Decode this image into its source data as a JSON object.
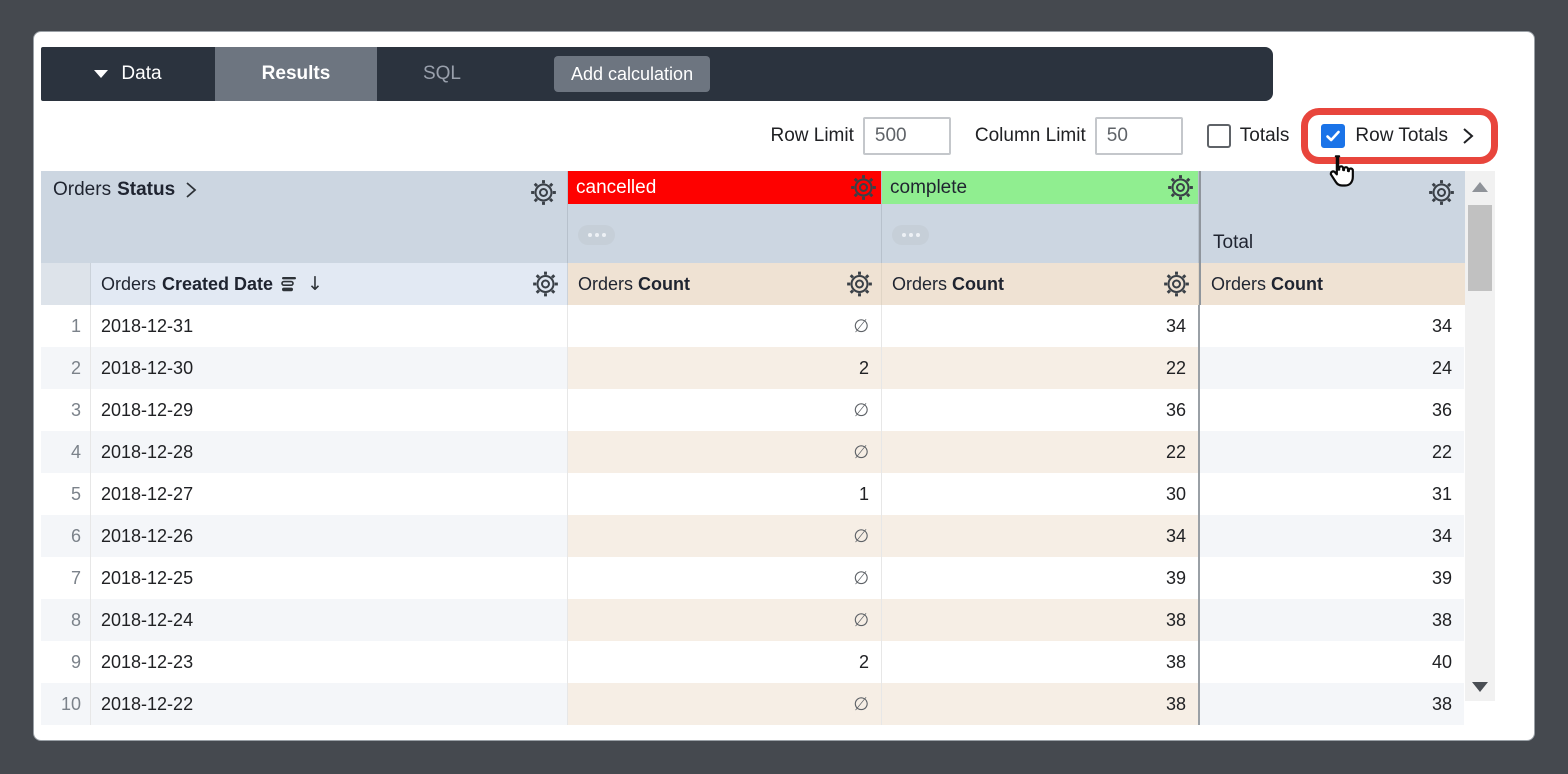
{
  "topbar": {
    "data_tab": "Data",
    "results_tab": "Results",
    "sql_tab": "SQL",
    "add_calculation": "Add calculation"
  },
  "controls": {
    "row_limit_label": "Row Limit",
    "row_limit_value": "500",
    "column_limit_label": "Column Limit",
    "column_limit_value": "50",
    "totals_label": "Totals",
    "totals_checked": false,
    "row_totals_label": "Row Totals",
    "row_totals_checked": true
  },
  "table": {
    "dimension": {
      "prefix": "Orders",
      "name": "Status"
    },
    "pivot_values": [
      {
        "label": "cancelled",
        "bg": "#FE0100",
        "fg": "#FFFFFF"
      },
      {
        "label": "complete",
        "bg": "#90EE90",
        "fg": "#1F2430"
      }
    ],
    "total_column_label": "Total",
    "row_field": {
      "prefix": "Orders",
      "name": "Created Date"
    },
    "measure": {
      "prefix": "Orders",
      "name": "Count"
    },
    "null_symbol": "∅",
    "rows": [
      {
        "num": "1",
        "date": "2018-12-31",
        "cancelled": "∅",
        "complete": "34",
        "total": "34"
      },
      {
        "num": "2",
        "date": "2018-12-30",
        "cancelled": "2",
        "complete": "22",
        "total": "24"
      },
      {
        "num": "3",
        "date": "2018-12-29",
        "cancelled": "∅",
        "complete": "36",
        "total": "36"
      },
      {
        "num": "4",
        "date": "2018-12-28",
        "cancelled": "∅",
        "complete": "22",
        "total": "22"
      },
      {
        "num": "5",
        "date": "2018-12-27",
        "cancelled": "1",
        "complete": "30",
        "total": "31"
      },
      {
        "num": "6",
        "date": "2018-12-26",
        "cancelled": "∅",
        "complete": "34",
        "total": "34"
      },
      {
        "num": "7",
        "date": "2018-12-25",
        "cancelled": "∅",
        "complete": "39",
        "total": "39"
      },
      {
        "num": "8",
        "date": "2018-12-24",
        "cancelled": "∅",
        "complete": "38",
        "total": "38"
      },
      {
        "num": "9",
        "date": "2018-12-23",
        "cancelled": "2",
        "complete": "38",
        "total": "40"
      },
      {
        "num": "10",
        "date": "2018-12-22",
        "cancelled": "∅",
        "complete": "38",
        "total": "38"
      }
    ]
  },
  "icons": {
    "gear": "gear-cog",
    "caret_down": "▾",
    "chevron_right": "›",
    "sort_desc": "↓",
    "ellipsis": "⋯",
    "cursor": "pointer-hand"
  },
  "colors": {
    "topbar_bg": "#2B333E",
    "tab_active_bg": "#6D7580",
    "accent_blue": "#1A73E8",
    "highlight_red": "#E8453C",
    "pivot_header_bg": "#CCD6E1",
    "measure_header_bg": "#EFE2D3",
    "cancelled_bg": "#FE0100",
    "complete_bg": "#90EE90",
    "stripe_bg": "#F4F6F9",
    "stripe_measure_bg": "#F6EEE5"
  }
}
